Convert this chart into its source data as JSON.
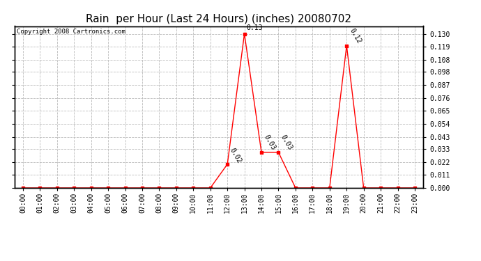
{
  "title": "Rain  per Hour (Last 24 Hours) (inches) 20080702",
  "copyright": "Copyright 2008 Cartronics.com",
  "hours": [
    0,
    1,
    2,
    3,
    4,
    5,
    6,
    7,
    8,
    9,
    10,
    11,
    12,
    13,
    14,
    15,
    16,
    17,
    18,
    19,
    20,
    21,
    22,
    23
  ],
  "values": [
    0.0,
    0.0,
    0.0,
    0.0,
    0.0,
    0.0,
    0.0,
    0.0,
    0.0,
    0.0,
    0.0,
    0.0,
    0.02,
    0.13,
    0.03,
    0.03,
    0.0,
    0.0,
    0.0,
    0.12,
    0.0,
    0.0,
    0.0,
    0.0
  ],
  "line_color": "#ff0000",
  "marker_color": "#ff0000",
  "background_color": "#ffffff",
  "grid_color": "#bbbbbb",
  "yticks": [
    0.0,
    0.011,
    0.022,
    0.033,
    0.043,
    0.054,
    0.065,
    0.076,
    0.087,
    0.098,
    0.108,
    0.119,
    0.13
  ],
  "ylim": [
    0.0,
    0.1365
  ],
  "title_fontsize": 11,
  "tick_fontsize": 7,
  "copyright_fontsize": 6.5,
  "annotation_fontsize": 7
}
